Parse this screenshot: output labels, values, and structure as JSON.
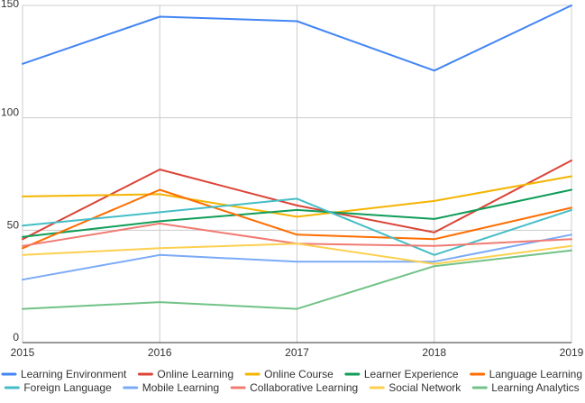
{
  "chart_data": {
    "type": "line",
    "title": "",
    "xlabel": "",
    "ylabel": "",
    "x": [
      "2015",
      "2016",
      "2017",
      "2018",
      "2019"
    ],
    "ylim": [
      0,
      150
    ],
    "yticks": [
      0,
      50,
      100,
      150
    ],
    "grid": true,
    "legend_position": "bottom",
    "series": [
      {
        "name": "Learning Environment",
        "color": "#4285f4",
        "values": [
          124,
          145,
          143,
          121,
          150
        ]
      },
      {
        "name": "Online Learning",
        "color": "#db4437",
        "values": [
          46,
          77,
          61,
          49,
          81
        ]
      },
      {
        "name": "Online Course",
        "color": "#f4b400",
        "values": [
          65,
          66,
          56,
          63,
          74
        ]
      },
      {
        "name": "Learner Experience",
        "color": "#0f9d58",
        "values": [
          47,
          54,
          59,
          55,
          68
        ]
      },
      {
        "name": "Language Learning",
        "color": "#ff6d01",
        "values": [
          42,
          68,
          48,
          46,
          60
        ]
      },
      {
        "name": "Foreign Language",
        "color": "#46bdc6",
        "values": [
          52,
          58,
          64,
          39,
          59
        ]
      },
      {
        "name": "Mobile Learning",
        "color": "#7baaf7",
        "values": [
          28,
          39,
          36,
          36,
          48
        ]
      },
      {
        "name": "Collaborative Learning",
        "color": "#f07b72",
        "values": [
          43,
          53,
          44,
          43,
          46
        ]
      },
      {
        "name": "Social Network",
        "color": "#fcd04f",
        "values": [
          39,
          42,
          44,
          35,
          43
        ]
      },
      {
        "name": "Learning Analytics",
        "color": "#71c287",
        "values": [
          15,
          18,
          15,
          34,
          41
        ]
      }
    ]
  }
}
